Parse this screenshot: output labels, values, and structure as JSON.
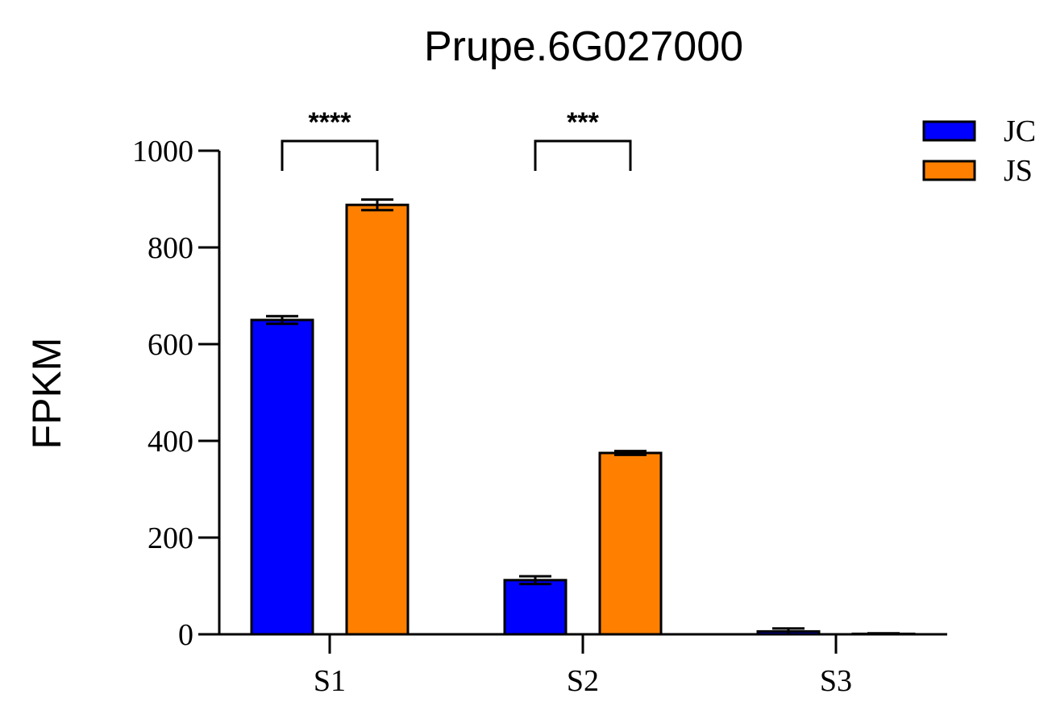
{
  "chart_data": {
    "type": "bar",
    "title": "Prupe.6G027000",
    "xlabel": "",
    "ylabel": "FPKM",
    "ylim": [
      0,
      1000
    ],
    "yticks": [
      "0",
      "200",
      "400",
      "600",
      "800",
      "1000"
    ],
    "categories": [
      "S1",
      "S2",
      "S3"
    ],
    "series": [
      {
        "name": "JC",
        "color": "#0000ff",
        "values": [
          650,
          112,
          6
        ],
        "errors": [
          8,
          8,
          6
        ]
      },
      {
        "name": "JS",
        "color": "#ff8000",
        "values": [
          888,
          375,
          1
        ],
        "errors": [
          11,
          4,
          1
        ]
      }
    ],
    "significance": [
      {
        "category": "S1",
        "label": "****"
      },
      {
        "category": "S2",
        "label": "***"
      }
    ],
    "legend": {
      "position": "top-right"
    },
    "grid": false
  }
}
